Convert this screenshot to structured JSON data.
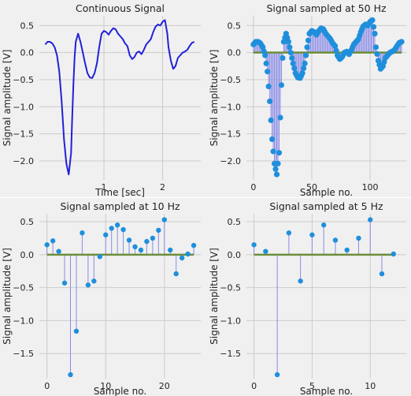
{
  "colors": {
    "panel_bg": "#f0f0f0",
    "grid": "#cbcbcb",
    "figure_bg": "#ffffff",
    "line": "#2121d8",
    "stem_line": "#8a8ae6",
    "marker": "#1f8fdc",
    "baseline": "#6b8e3a",
    "text": "#222222"
  },
  "chart_data": [
    {
      "type": "line",
      "title": "Continuous Signal",
      "xlabel": "Time [sec]",
      "ylabel": "Signal amplitude [V]",
      "xlim": [
        -0.1,
        2.65
      ],
      "ylim": [
        -2.35,
        0.68
      ],
      "xticks": [
        1,
        2
      ],
      "xticklabels": [
        "1",
        "2"
      ],
      "yticks": [
        0.5,
        0.0,
        -0.5,
        -1.0,
        -1.5,
        -2.0
      ],
      "yticklabels": [
        "0.5",
        "0.0",
        "−0.5",
        "−1.0",
        "−1.5",
        "−2.0"
      ],
      "grid": true,
      "series": [
        {
          "x": [
            0.0,
            0.04,
            0.08,
            0.12,
            0.16,
            0.2,
            0.24,
            0.28,
            0.32,
            0.36,
            0.4,
            0.44,
            0.46,
            0.48,
            0.5,
            0.52,
            0.56,
            0.6,
            0.64,
            0.68,
            0.72,
            0.76,
            0.8,
            0.84,
            0.88,
            0.92,
            0.96,
            1.0,
            1.04,
            1.08,
            1.12,
            1.16,
            1.2,
            1.24,
            1.28,
            1.32,
            1.36,
            1.4,
            1.44,
            1.48,
            1.52,
            1.56,
            1.6,
            1.64,
            1.68,
            1.72,
            1.76,
            1.8,
            1.84,
            1.88,
            1.92,
            1.96,
            2.0,
            2.04,
            2.08,
            2.1,
            2.14,
            2.18,
            2.22,
            2.26,
            2.3,
            2.34,
            2.38,
            2.42,
            2.46,
            2.5,
            2.54
          ],
          "y": [
            0.15,
            0.2,
            0.2,
            0.17,
            0.1,
            -0.05,
            -0.35,
            -0.9,
            -1.6,
            -2.05,
            -2.25,
            -1.85,
            -1.2,
            -0.6,
            -0.1,
            0.2,
            0.35,
            0.2,
            0.0,
            -0.2,
            -0.38,
            -0.46,
            -0.47,
            -0.38,
            -0.2,
            0.1,
            0.35,
            0.4,
            0.38,
            0.33,
            0.4,
            0.45,
            0.43,
            0.35,
            0.3,
            0.25,
            0.17,
            0.12,
            -0.05,
            -0.12,
            -0.08,
            0.0,
            0.02,
            -0.03,
            0.05,
            0.15,
            0.2,
            0.25,
            0.38,
            0.48,
            0.52,
            0.5,
            0.57,
            0.6,
            0.35,
            0.1,
            -0.15,
            -0.3,
            -0.25,
            -0.1,
            -0.05,
            0.0,
            0.02,
            0.05,
            0.12,
            0.18,
            0.2
          ]
        }
      ]
    },
    {
      "type": "stem",
      "title": "Signal sampled at 50 Hz",
      "xlabel": "Sample no.",
      "ylabel": "Signal amplitude [V]",
      "xlim": [
        -6,
        131
      ],
      "ylim": [
        -2.35,
        0.68
      ],
      "xticks": [
        0,
        50,
        100
      ],
      "xticklabels": [
        "0",
        "50",
        "100"
      ],
      "yticks": [
        0.5,
        0.0,
        -0.5,
        -1.0,
        -1.5,
        -2.0
      ],
      "yticklabels": [
        "0.5",
        "0.0",
        "−0.5",
        "−1.0",
        "−1.5",
        "−2.0"
      ],
      "grid": true,
      "stem_source": "first",
      "x_start": 0,
      "x_step": 1,
      "sample_step_sec": 0.02
    },
    {
      "type": "stem",
      "title": "Signal sampled at 10 Hz",
      "xlabel": "Sample no.",
      "ylabel": "Signal amplitude [V]",
      "xlim": [
        -1.3,
        26.2
      ],
      "ylim": [
        -1.88,
        0.62
      ],
      "xticks": [
        0,
        10,
        20
      ],
      "xticklabels": [
        "0",
        "10",
        "20"
      ],
      "yticks": [
        0.5,
        0.0,
        -0.5,
        -1.0,
        -1.5
      ],
      "yticklabels": [
        "0.5",
        "0.0",
        "−0.5",
        "−1.0",
        "−1.5"
      ],
      "grid": true,
      "x": [
        0,
        1,
        2,
        3,
        4,
        5,
        6,
        7,
        8,
        9,
        10,
        11,
        12,
        13,
        14,
        15,
        16,
        17,
        18,
        19,
        20,
        21,
        22,
        23,
        24,
        25
      ],
      "y": [
        0.15,
        0.21,
        0.05,
        -0.43,
        -1.82,
        -1.16,
        0.33,
        -0.46,
        -0.4,
        -0.03,
        0.3,
        0.4,
        0.45,
        0.38,
        0.22,
        0.12,
        0.07,
        0.2,
        0.25,
        0.37,
        0.53,
        0.07,
        -0.29,
        -0.05,
        0.01,
        0.14
      ]
    },
    {
      "type": "stem",
      "title": "Signal sampled at 5 Hz",
      "xlabel": "Sample no.",
      "ylabel": "Signal amplitude [V]",
      "xlim": [
        -0.65,
        13.1
      ],
      "ylim": [
        -1.88,
        0.62
      ],
      "xticks": [
        0,
        5,
        10
      ],
      "xticklabels": [
        "0",
        "5",
        "10"
      ],
      "yticks": [
        0.5,
        0.0,
        -0.5,
        -1.0,
        -1.5
      ],
      "yticklabels": [
        "0.5",
        "0.0",
        "−0.5",
        "−1.0",
        "−1.5"
      ],
      "grid": true,
      "x": [
        0,
        1,
        2,
        3,
        4,
        5,
        6,
        7,
        8,
        9,
        10,
        11,
        12
      ],
      "y": [
        0.15,
        0.05,
        -1.82,
        0.33,
        -0.4,
        0.3,
        0.45,
        0.22,
        0.07,
        0.25,
        0.53,
        -0.29,
        0.01
      ]
    }
  ]
}
